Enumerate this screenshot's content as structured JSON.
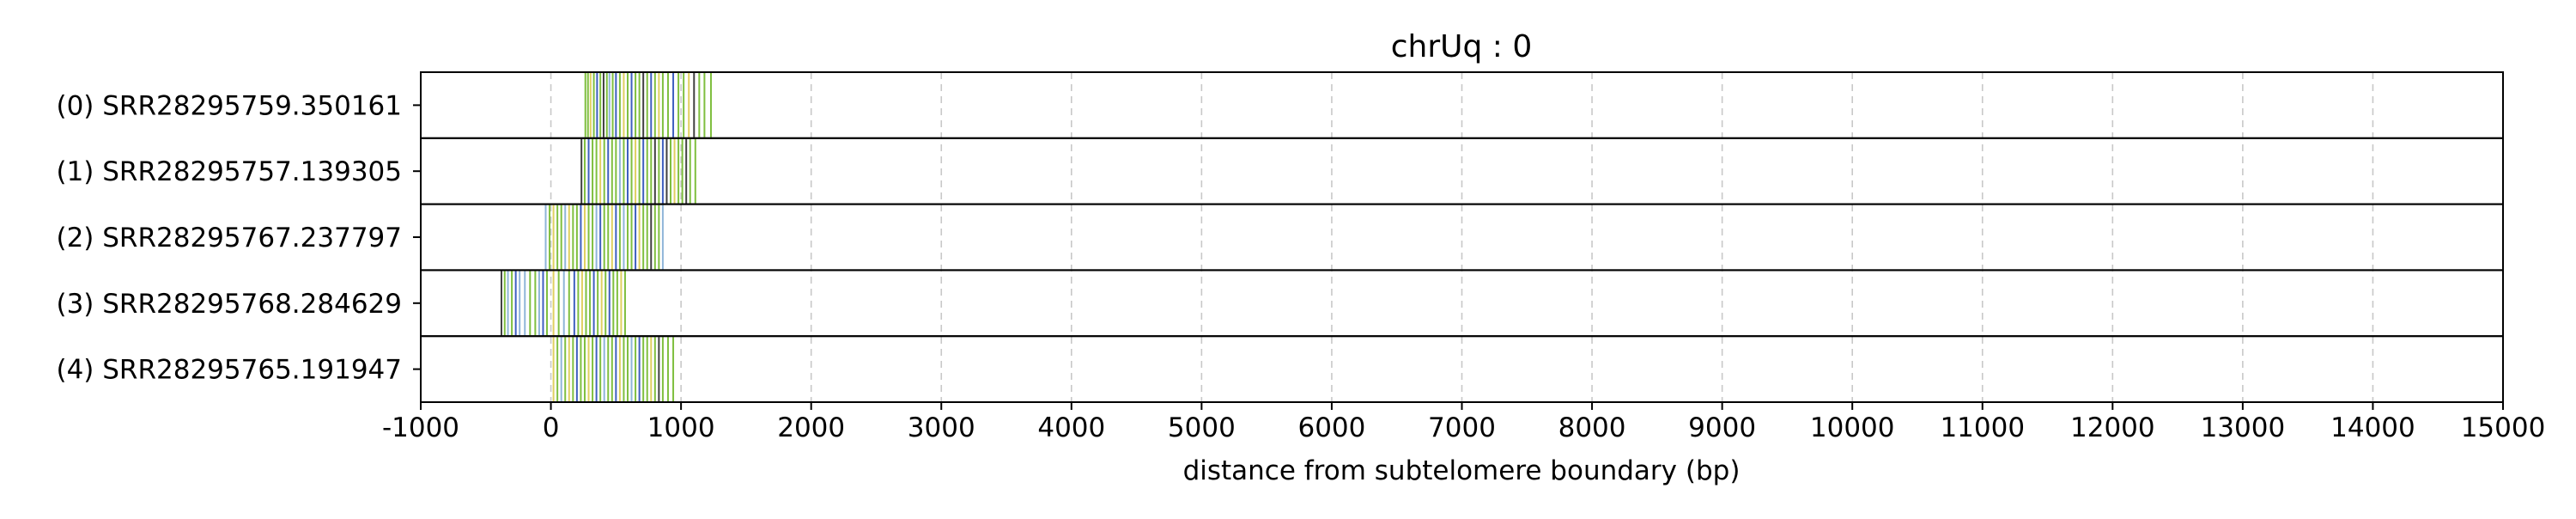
{
  "chart_data": {
    "type": "strip",
    "title": "chrUq : 0",
    "xlabel": "distance from subtelomere boundary (bp)",
    "ylabel": "",
    "xlim": [
      -1000,
      15000
    ],
    "xticks": [
      -1000,
      0,
      1000,
      2000,
      3000,
      4000,
      5000,
      6000,
      7000,
      8000,
      9000,
      10000,
      11000,
      12000,
      13000,
      14000,
      15000
    ],
    "x_grid": "dashed vertical at every x tick",
    "colors": {
      "green": "#7fbf3f",
      "blue": "#3f5fbf",
      "yellow": "#e0d060",
      "light_blue": "#8fb5d8",
      "dark": "#404040",
      "grid": "#c8c8c8"
    },
    "reads": [
      {
        "label": "(0) SRR28295759.350161",
        "marks": [
          {
            "x": 265,
            "c": "green"
          },
          {
            "x": 285,
            "c": "green"
          },
          {
            "x": 305,
            "c": "yellow"
          },
          {
            "x": 330,
            "c": "green"
          },
          {
            "x": 355,
            "c": "blue"
          },
          {
            "x": 380,
            "c": "green"
          },
          {
            "x": 405,
            "c": "dark"
          },
          {
            "x": 430,
            "c": "green"
          },
          {
            "x": 450,
            "c": "light_blue"
          },
          {
            "x": 475,
            "c": "green"
          },
          {
            "x": 500,
            "c": "blue"
          },
          {
            "x": 530,
            "c": "green"
          },
          {
            "x": 560,
            "c": "yellow"
          },
          {
            "x": 590,
            "c": "green"
          },
          {
            "x": 620,
            "c": "blue"
          },
          {
            "x": 650,
            "c": "green"
          },
          {
            "x": 680,
            "c": "green"
          },
          {
            "x": 710,
            "c": "dark"
          },
          {
            "x": 740,
            "c": "green"
          },
          {
            "x": 770,
            "c": "blue"
          },
          {
            "x": 800,
            "c": "green"
          },
          {
            "x": 830,
            "c": "yellow"
          },
          {
            "x": 860,
            "c": "green"
          },
          {
            "x": 900,
            "c": "green"
          },
          {
            "x": 940,
            "c": "blue"
          },
          {
            "x": 980,
            "c": "green"
          },
          {
            "x": 1020,
            "c": "green"
          },
          {
            "x": 1060,
            "c": "yellow"
          },
          {
            "x": 1100,
            "c": "dark"
          },
          {
            "x": 1140,
            "c": "green"
          },
          {
            "x": 1180,
            "c": "green"
          },
          {
            "x": 1230,
            "c": "green"
          }
        ]
      },
      {
        "label": "(1) SRR28295757.139305",
        "marks": [
          {
            "x": 235,
            "c": "dark"
          },
          {
            "x": 260,
            "c": "green"
          },
          {
            "x": 290,
            "c": "blue"
          },
          {
            "x": 320,
            "c": "green"
          },
          {
            "x": 350,
            "c": "green"
          },
          {
            "x": 380,
            "c": "yellow"
          },
          {
            "x": 410,
            "c": "green"
          },
          {
            "x": 440,
            "c": "blue"
          },
          {
            "x": 470,
            "c": "green"
          },
          {
            "x": 500,
            "c": "green"
          },
          {
            "x": 530,
            "c": "light_blue"
          },
          {
            "x": 560,
            "c": "green"
          },
          {
            "x": 590,
            "c": "blue"
          },
          {
            "x": 620,
            "c": "green"
          },
          {
            "x": 650,
            "c": "yellow"
          },
          {
            "x": 680,
            "c": "green"
          },
          {
            "x": 710,
            "c": "blue"
          },
          {
            "x": 740,
            "c": "green"
          },
          {
            "x": 770,
            "c": "green"
          },
          {
            "x": 800,
            "c": "dark"
          },
          {
            "x": 830,
            "c": "green"
          },
          {
            "x": 860,
            "c": "blue"
          },
          {
            "x": 890,
            "c": "dark"
          },
          {
            "x": 920,
            "c": "green"
          },
          {
            "x": 950,
            "c": "yellow"
          },
          {
            "x": 980,
            "c": "green"
          },
          {
            "x": 1010,
            "c": "green"
          },
          {
            "x": 1040,
            "c": "dark"
          },
          {
            "x": 1070,
            "c": "green"
          },
          {
            "x": 1110,
            "c": "green"
          }
        ]
      },
      {
        "label": "(2) SRR28295767.237797",
        "marks": [
          {
            "x": -40,
            "c": "light_blue"
          },
          {
            "x": -10,
            "c": "green"
          },
          {
            "x": 20,
            "c": "yellow"
          },
          {
            "x": 50,
            "c": "green"
          },
          {
            "x": 80,
            "c": "green"
          },
          {
            "x": 110,
            "c": "light_blue"
          },
          {
            "x": 140,
            "c": "yellow"
          },
          {
            "x": 170,
            "c": "green"
          },
          {
            "x": 200,
            "c": "green"
          },
          {
            "x": 230,
            "c": "blue"
          },
          {
            "x": 260,
            "c": "yellow"
          },
          {
            "x": 290,
            "c": "green"
          },
          {
            "x": 320,
            "c": "green"
          },
          {
            "x": 350,
            "c": "light_blue"
          },
          {
            "x": 380,
            "c": "blue"
          },
          {
            "x": 410,
            "c": "green"
          },
          {
            "x": 440,
            "c": "green"
          },
          {
            "x": 470,
            "c": "yellow"
          },
          {
            "x": 500,
            "c": "blue"
          },
          {
            "x": 530,
            "c": "green"
          },
          {
            "x": 560,
            "c": "light_blue"
          },
          {
            "x": 590,
            "c": "green"
          },
          {
            "x": 620,
            "c": "green"
          },
          {
            "x": 650,
            "c": "blue"
          },
          {
            "x": 680,
            "c": "yellow"
          },
          {
            "x": 710,
            "c": "green"
          },
          {
            "x": 740,
            "c": "green"
          },
          {
            "x": 770,
            "c": "dark"
          },
          {
            "x": 800,
            "c": "green"
          },
          {
            "x": 830,
            "c": "green"
          },
          {
            "x": 860,
            "c": "light_blue"
          }
        ]
      },
      {
        "label": "(3) SRR28295768.284629",
        "marks": [
          {
            "x": -380,
            "c": "dark"
          },
          {
            "x": -355,
            "c": "green"
          },
          {
            "x": -330,
            "c": "light_blue"
          },
          {
            "x": -300,
            "c": "green"
          },
          {
            "x": -270,
            "c": "blue"
          },
          {
            "x": -240,
            "c": "light_blue"
          },
          {
            "x": -200,
            "c": "light_blue"
          },
          {
            "x": -160,
            "c": "green"
          },
          {
            "x": -120,
            "c": "green"
          },
          {
            "x": -90,
            "c": "light_blue"
          },
          {
            "x": -60,
            "c": "blue"
          },
          {
            "x": -30,
            "c": "green"
          },
          {
            "x": 20,
            "c": "yellow"
          },
          {
            "x": 60,
            "c": "green"
          },
          {
            "x": 100,
            "c": "light_blue"
          },
          {
            "x": 140,
            "c": "green"
          },
          {
            "x": 180,
            "c": "blue"
          },
          {
            "x": 210,
            "c": "green"
          },
          {
            "x": 240,
            "c": "yellow"
          },
          {
            "x": 270,
            "c": "green"
          },
          {
            "x": 300,
            "c": "green"
          },
          {
            "x": 330,
            "c": "blue"
          },
          {
            "x": 360,
            "c": "green"
          },
          {
            "x": 390,
            "c": "yellow"
          },
          {
            "x": 420,
            "c": "green"
          },
          {
            "x": 450,
            "c": "blue"
          },
          {
            "x": 480,
            "c": "green"
          },
          {
            "x": 510,
            "c": "green"
          },
          {
            "x": 540,
            "c": "yellow"
          },
          {
            "x": 570,
            "c": "green"
          }
        ]
      },
      {
        "label": "(4) SRR28295765.191947",
        "marks": [
          {
            "x": 20,
            "c": "yellow"
          },
          {
            "x": 50,
            "c": "green"
          },
          {
            "x": 80,
            "c": "light_blue"
          },
          {
            "x": 110,
            "c": "green"
          },
          {
            "x": 140,
            "c": "yellow"
          },
          {
            "x": 170,
            "c": "green"
          },
          {
            "x": 200,
            "c": "blue"
          },
          {
            "x": 230,
            "c": "green"
          },
          {
            "x": 260,
            "c": "green"
          },
          {
            "x": 290,
            "c": "yellow"
          },
          {
            "x": 320,
            "c": "green"
          },
          {
            "x": 350,
            "c": "blue"
          },
          {
            "x": 380,
            "c": "green"
          },
          {
            "x": 410,
            "c": "light_blue"
          },
          {
            "x": 440,
            "c": "green"
          },
          {
            "x": 470,
            "c": "green"
          },
          {
            "x": 500,
            "c": "blue"
          },
          {
            "x": 530,
            "c": "yellow"
          },
          {
            "x": 560,
            "c": "green"
          },
          {
            "x": 590,
            "c": "green"
          },
          {
            "x": 620,
            "c": "light_blue"
          },
          {
            "x": 650,
            "c": "green"
          },
          {
            "x": 680,
            "c": "blue"
          },
          {
            "x": 710,
            "c": "green"
          },
          {
            "x": 740,
            "c": "green"
          },
          {
            "x": 770,
            "c": "yellow"
          },
          {
            "x": 800,
            "c": "green"
          },
          {
            "x": 830,
            "c": "dark"
          },
          {
            "x": 860,
            "c": "green"
          },
          {
            "x": 900,
            "c": "green"
          },
          {
            "x": 940,
            "c": "green"
          }
        ]
      }
    ]
  }
}
